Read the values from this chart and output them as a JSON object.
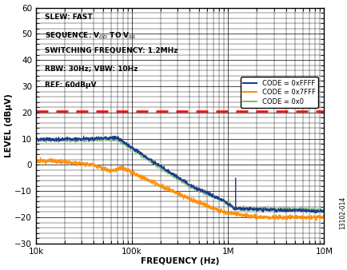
{
  "xlabel": "FREQUENCY (Hz)",
  "ylabel": "LEVEL (dBµV)",
  "xlim": [
    10000,
    10000000
  ],
  "ylim": [
    -30,
    60
  ],
  "yticks": [
    -30,
    -20,
    -10,
    0,
    10,
    20,
    30,
    40,
    50,
    60
  ],
  "red_dashed_y": 20.5,
  "annotation_lines": [
    "SLEW: FAST",
    "SEQUENCE: V$_{DD}$ TO V$_{SS}$",
    "SWITCHING FREQUENCY: 1.2MHz",
    "RBW: 30Hz; VBW: 10Hz",
    "REF: 60dBµV"
  ],
  "legend_entries": [
    "CODE = 0xFFFF",
    "CODE = 0x7FFF",
    "CODE = 0x0"
  ],
  "line_colors": [
    "#1f3b8c",
    "#ff8c00",
    "#7dbf7d"
  ],
  "watermark": "13102-014"
}
